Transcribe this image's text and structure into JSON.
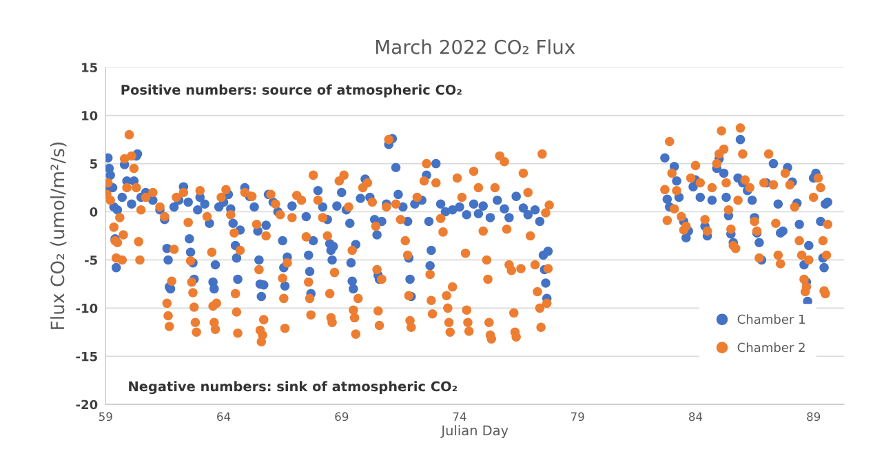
{
  "chart_data": {
    "type": "scatter",
    "title": "March 2022 CO₂ Flux",
    "xlabel": "Julian Day",
    "ylabel": "Flux CO₂ (umol/m²/s)",
    "annotations": [
      "Positive numbers: source of atmospheric CO₂",
      "Negative numbers: sink of atmospheric CO₂"
    ],
    "xlim": [
      59,
      90.3
    ],
    "xticks": [
      59,
      64,
      69,
      74,
      79,
      84,
      89
    ],
    "ylim": [
      -20,
      15
    ],
    "yticks": [
      -20,
      -15,
      -10,
      -5,
      0,
      5,
      10,
      15
    ],
    "grid": "y",
    "legend": "bottom right",
    "marker": "circle",
    "series": [
      {
        "name": "Chamber 1",
        "color": "#4472c4",
        "x": [
          59.05,
          59.1,
          59.15,
          59.2,
          59.3,
          59.35,
          59.4,
          59.45,
          59.5,
          59.6,
          59.7,
          59.8,
          59.9,
          60.1,
          60.2,
          60.3,
          60.35,
          60.5,
          60.7,
          61.0,
          61.3,
          61.5,
          61.6,
          61.65,
          61.7,
          61.75,
          61.9,
          62.1,
          62.3,
          62.5,
          62.55,
          62.6,
          62.7,
          62.75,
          62.9,
          63.0,
          63.2,
          63.4,
          63.5,
          63.55,
          63.6,
          63.65,
          63.8,
          64.0,
          64.2,
          64.3,
          64.4,
          64.5,
          64.55,
          64.6,
          64.7,
          64.9,
          65.1,
          65.3,
          65.45,
          65.5,
          65.55,
          65.6,
          65.7,
          65.8,
          65.9,
          66.1,
          66.3,
          66.5,
          66.55,
          66.6,
          66.7,
          66.9,
          67.1,
          67.3,
          67.5,
          67.6,
          67.65,
          67.7,
          67.8,
          68.0,
          68.2,
          68.4,
          68.5,
          68.55,
          68.6,
          68.65,
          68.8,
          69.0,
          69.2,
          69.35,
          69.4,
          69.45,
          69.5,
          69.6,
          69.8,
          70.0,
          70.2,
          70.4,
          70.5,
          70.55,
          70.6,
          70.7,
          70.9,
          71.0,
          71.15,
          71.3,
          71.4,
          71.6,
          71.8,
          71.85,
          71.9,
          71.95,
          72.1,
          72.4,
          72.6,
          72.7,
          72.75,
          72.8,
          73.0,
          73.2,
          73.4,
          73.7,
          74.0,
          74.3,
          74.6,
          74.8,
          75.0,
          75.3,
          75.6,
          75.9,
          76.1,
          76.4,
          76.7,
          76.9,
          77.2,
          77.4,
          77.55,
          77.6,
          77.65,
          77.7,
          77.75,
          77.8,
          82.7,
          82.8,
          82.9,
          83.1,
          83.2,
          83.3,
          83.5,
          83.6,
          83.7,
          83.9,
          84.0,
          84.2,
          84.4,
          84.5,
          84.7,
          84.9,
          85.0,
          85.2,
          85.3,
          85.4,
          85.5,
          85.6,
          85.8,
          85.9,
          86.0,
          86.2,
          86.4,
          86.5,
          86.6,
          86.7,
          86.8,
          87.0,
          87.3,
          87.5,
          87.6,
          87.7,
          87.9,
          88.1,
          88.3,
          88.4,
          88.6,
          88.7,
          88.75,
          88.8,
          89.0,
          89.1,
          89.3,
          89.4,
          89.45,
          89.5,
          89.6
        ],
        "values": [
          2.2,
          5.6,
          4.5,
          3.8,
          2.5,
          0.5,
          -2.8,
          -5.8,
          0.2,
          null,
          1.5,
          4.9,
          3.2,
          0.8,
          3.2,
          5.8,
          6.0,
          1.5,
          2.0,
          1.2,
          0.2,
          -0.8,
          -3.8,
          -5.0,
          -7.8,
          -8.0,
          0.5,
          1.2,
          2.6,
          1.0,
          -2.8,
          -4.2,
          -5.3,
          -7.0,
          0.2,
          1.5,
          0.8,
          -1.2,
          null,
          -7.3,
          -8.0,
          -5.5,
          0.5,
          1.0,
          1.8,
          0.3,
          -1.2,
          -3.5,
          -4.8,
          -7.0,
          -1.9,
          2.5,
          1.6,
          0.5,
          -2.0,
          -5.0,
          -7.5,
          -8.8,
          -7.6,
          -1.4,
          1.8,
          1.0,
          0.0,
          -3.0,
          -5.8,
          -7.7,
          -4.7,
          0.6,
          null,
          null,
          -0.5,
          -4.5,
          -6.2,
          -8.5,
          -3.0,
          2.2,
          0.5,
          -0.8,
          -3.3,
          -4.0,
          -5.0,
          -3.6,
          0.6,
          2.0,
          0.2,
          -1.2,
          -5.3,
          -7.2,
          -8.0,
          -3.4,
          1.4,
          3.4,
          1.5,
          -0.8,
          -2.4,
          -6.6,
          -7.0,
          -1.0,
          0.8,
          7.0,
          7.6,
          4.6,
          1.8,
          0.5,
          -1.0,
          -4.8,
          -7.0,
          -8.8,
          0.8,
          1.2,
          3.8,
          -1.0,
          -5.6,
          -4.0,
          5.0,
          0.8,
          0.0,
          0.2,
          0.5,
          -0.3,
          0.8,
          -0.2,
          0.6,
          -0.6,
          1.2,
          0.3,
          -0.6,
          1.6,
          0.4,
          -0.3,
          0.2,
          -1.0,
          -4.5,
          -6.0,
          -7.4,
          -9.0,
          -4.1,
          null,
          5.6,
          1.3,
          0.5,
          4.7,
          3.2,
          1.5,
          -1.0,
          -2.7,
          -2.0,
          2.6,
          3.3,
          1.5,
          -1.5,
          -2.5,
          1.2,
          4.5,
          5.5,
          4.0,
          1.5,
          -0.4,
          -2.3,
          -3.2,
          3.5,
          7.5,
          3.0,
          2.2,
          1.2,
          -0.6,
          -2.2,
          -3.2,
          -5.0,
          3.0,
          5.0,
          0.8,
          -2.2,
          -2.0,
          4.6,
          3.1,
          0.9,
          -1.3,
          -5.5,
          -7.3,
          -9.3,
          -3.5,
          3.5,
          4.0,
          -1.0,
          -4.8,
          -5.8,
          0.8,
          1.0
        ]
      },
      {
        "name": "Chamber 2",
        "color": "#ed7d31",
        "x": [
          59.05,
          59.1,
          59.2,
          59.35,
          59.4,
          59.45,
          59.5,
          59.6,
          59.7,
          59.75,
          59.8,
          59.9,
          60.0,
          60.1,
          60.2,
          60.3,
          60.4,
          60.45,
          60.5,
          60.7,
          61.0,
          61.3,
          61.5,
          61.6,
          61.65,
          61.7,
          61.8,
          61.9,
          62.0,
          62.3,
          62.5,
          62.6,
          62.65,
          62.7,
          62.75,
          62.8,
          62.85,
          63.0,
          63.3,
          63.5,
          63.55,
          63.6,
          63.65,
          63.7,
          63.9,
          64.1,
          64.3,
          64.45,
          64.5,
          64.55,
          64.6,
          64.7,
          64.9,
          65.2,
          65.4,
          65.5,
          65.55,
          65.6,
          65.65,
          65.7,
          65.8,
          66.0,
          66.2,
          66.4,
          66.5,
          66.55,
          66.6,
          66.7,
          66.9,
          67.1,
          67.3,
          67.5,
          67.6,
          67.65,
          67.7,
          67.8,
          68.0,
          68.2,
          68.4,
          68.5,
          68.55,
          68.6,
          68.7,
          68.9,
          69.1,
          69.3,
          69.45,
          69.5,
          69.55,
          69.6,
          69.7,
          69.9,
          70.1,
          70.3,
          70.45,
          70.5,
          70.55,
          70.6,
          70.7,
          70.9,
          71.0,
          71.3,
          71.5,
          71.7,
          71.8,
          71.85,
          71.9,
          71.95,
          72.2,
          72.5,
          72.6,
          72.75,
          72.8,
          72.85,
          73.0,
          73.2,
          73.3,
          73.45,
          73.5,
          73.55,
          73.6,
          73.7,
          73.9,
          74.1,
          74.25,
          74.3,
          74.35,
          74.4,
          74.6,
          74.8,
          75.0,
          75.15,
          75.2,
          75.25,
          75.3,
          75.35,
          75.5,
          75.7,
          75.9,
          76.0,
          76.1,
          76.2,
          76.3,
          76.35,
          76.4,
          76.6,
          76.7,
          76.9,
          77.0,
          77.2,
          77.3,
          77.4,
          77.45,
          77.5,
          77.65,
          77.7,
          77.75,
          77.8,
          82.7,
          82.8,
          82.9,
          83.0,
          83.1,
          83.2,
          83.4,
          83.5,
          83.6,
          83.8,
          84.0,
          84.2,
          84.4,
          84.5,
          84.7,
          84.9,
          85.0,
          85.1,
          85.2,
          85.3,
          85.4,
          85.5,
          85.6,
          85.7,
          85.8,
          85.9,
          86.0,
          86.1,
          86.3,
          86.5,
          86.6,
          86.7,
          86.9,
          87.1,
          87.3,
          87.4,
          87.5,
          87.6,
          87.8,
          88.0,
          88.2,
          88.4,
          88.5,
          88.6,
          88.65,
          88.7,
          88.8,
          89.0,
          89.2,
          89.3,
          89.4,
          89.45,
          89.5,
          89.55,
          89.6
        ],
        "values": [
          1.8,
          3.0,
          1.2,
          -1.6,
          -3.0,
          -4.8,
          -3.2,
          -0.6,
          -5.0,
          -2.4,
          5.5,
          2.5,
          8.0,
          5.8,
          4.5,
          2.5,
          -3.1,
          -5.0,
          0.2,
          1.5,
          2.0,
          0.5,
          -0.5,
          -9.5,
          -10.8,
          -11.9,
          -7.2,
          -3.9,
          1.5,
          2.0,
          -1.1,
          -5.1,
          -7.3,
          -8.4,
          -9.9,
          -11.5,
          -12.5,
          2.2,
          -0.5,
          -4.2,
          -9.8,
          -11.5,
          -12.2,
          -9.5,
          1.5,
          2.3,
          -0.3,
          -2.2,
          -8.5,
          -10.4,
          -12.6,
          -4.0,
          2.0,
          1.6,
          -1.3,
          -6.0,
          -12.3,
          -13.5,
          -12.8,
          -11.2,
          -2.5,
          1.8,
          0.8,
          -0.3,
          -6.9,
          -9.0,
          -12.1,
          -5.3,
          -0.6,
          1.7,
          1.2,
          -2.6,
          -7.3,
          -9.0,
          -10.7,
          3.8,
          1.2,
          -0.6,
          -2.5,
          -8.5,
          -11.0,
          -11.5,
          -6.3,
          3.2,
          3.8,
          0.5,
          -4.0,
          -10.2,
          -11.0,
          -12.7,
          -9.0,
          2.5,
          3.0,
          1.0,
          -1.5,
          -6.0,
          -10.3,
          -11.8,
          -7.0,
          0.5,
          7.5,
          0.8,
          -0.8,
          -3.0,
          -4.5,
          -8.7,
          -11.3,
          -12.0,
          1.5,
          3.2,
          5.0,
          -6.5,
          -9.2,
          -10.6,
          3.0,
          -0.7,
          -2.1,
          -8.7,
          -10.0,
          -11.5,
          -12.5,
          -7.8,
          3.5,
          1.5,
          -4.3,
          -10.2,
          -11.5,
          -12.4,
          4.2,
          2.5,
          -2.0,
          -5.0,
          -7.0,
          -11.5,
          -12.8,
          -13.2,
          2.5,
          5.8,
          5.2,
          -1.8,
          -5.5,
          -6.1,
          -10.5,
          -12.5,
          -13.0,
          -5.9,
          4.0,
          2.0,
          -2.5,
          -5.5,
          -8.3,
          -10.0,
          -12.0,
          6.0,
          -0.1,
          -9.5,
          -5.9,
          0.7,
          2.3,
          -0.9,
          7.3,
          4.0,
          0.3,
          2.2,
          -0.5,
          -1.9,
          -1.5,
          3.5,
          4.8,
          3.0,
          -0.8,
          -2.0,
          2.5,
          5.0,
          6.0,
          8.4,
          6.5,
          3.0,
          0.2,
          -1.8,
          -3.5,
          -3.8,
          1.2,
          8.7,
          6.0,
          3.3,
          2.5,
          -1.0,
          -2.0,
          -4.8,
          3.0,
          6.0,
          2.8,
          -1.2,
          -4.5,
          -5.4,
          4.0,
          2.8,
          0.5,
          -3.0,
          -4.5,
          -7.0,
          -8.3,
          -7.8,
          -5.0,
          1.5,
          3.5,
          2.5,
          -3.0,
          -8.2,
          -8.5,
          -4.5,
          -1.3
        ]
      }
    ]
  }
}
